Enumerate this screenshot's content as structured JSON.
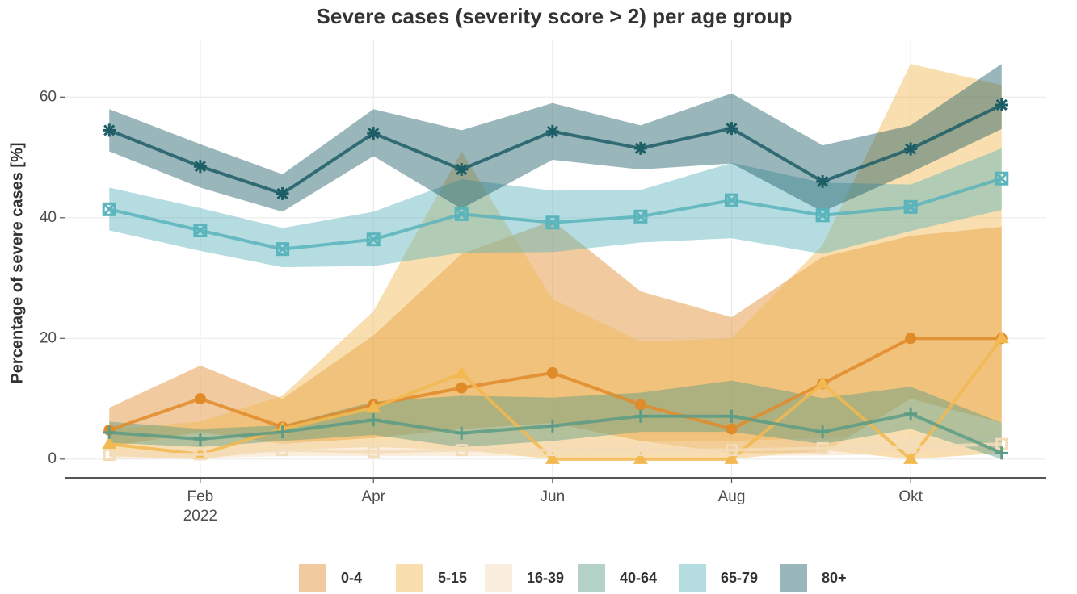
{
  "chart_data": {
    "type": "line",
    "title": "Severe cases (severity score > 2) per age group",
    "y_label": "Percentage of severe cases [%]",
    "x": [
      "2022-01",
      "2022-02",
      "2022-03",
      "2022-04",
      "2022-05",
      "2022-06",
      "2022-07",
      "2022-08",
      "2022-09",
      "2022-10",
      "2022-11"
    ],
    "xticks": [
      {
        "value": "2022-02",
        "label": "Feb\n2022"
      },
      {
        "value": "2022-04",
        "label": "Apr"
      },
      {
        "value": "2022-06",
        "label": "Jun"
      },
      {
        "value": "2022-08",
        "label": "Aug"
      },
      {
        "value": "2022-10",
        "label": "Okt"
      }
    ],
    "ylim": [
      -3.1,
      69.4
    ],
    "yticks": [
      0,
      20,
      40,
      60
    ],
    "grid": true,
    "legend": "bottom",
    "series": [
      {
        "name": "0-4",
        "color": "#e08b2a",
        "shape": "circle",
        "values": [
          4.8,
          10,
          5.3,
          9,
          11.8,
          14.3,
          9,
          5,
          12.5,
          20,
          20
        ],
        "upper": [
          8.5,
          15.5,
          10,
          20.5,
          34,
          39.5,
          27.8,
          23.5,
          33.5,
          37,
          38.5
        ],
        "lower": [
          2,
          4.5,
          2.5,
          3.5,
          5,
          6,
          3,
          1,
          1,
          10,
          6
        ]
      },
      {
        "name": "5-15",
        "color": "#f2b950",
        "shape": "triangle",
        "values": [
          2.5,
          0.8,
          5,
          8.5,
          14.2,
          0,
          0,
          0,
          12.5,
          0,
          20
        ],
        "upper": [
          5,
          6.2,
          10.5,
          24.5,
          51,
          26.5,
          19.5,
          20,
          35.5,
          65.5,
          62
        ],
        "lower": [
          0.5,
          0,
          1.5,
          2,
          1.5,
          0,
          0,
          0,
          1.5,
          0,
          1
        ]
      },
      {
        "name": "16-39",
        "color": "#f3dcb9",
        "shape": "square",
        "values": [
          0.7,
          0.8,
          1.5,
          1.2,
          1.5,
          1.5,
          1.5,
          1.5,
          1.8,
          2,
          2.5
        ],
        "upper": [
          2,
          2.5,
          3,
          3,
          3.5,
          3.5,
          3,
          3,
          3.5,
          4,
          4
        ],
        "lower": [
          0,
          0.2,
          0.5,
          0.5,
          0.5,
          0.5,
          0.6,
          0.5,
          0.6,
          0.8,
          1
        ]
      },
      {
        "name": "40-64",
        "color": "#5c9c85",
        "shape": "plus",
        "values": [
          4.4,
          3.3,
          4.5,
          6.5,
          4.3,
          5.5,
          7.1,
          7.1,
          4.5,
          7.5,
          1.0
        ],
        "upper": [
          6.2,
          5,
          5.6,
          9.5,
          10.5,
          10.2,
          11,
          13,
          10.1,
          12,
          6
        ],
        "lower": [
          2.7,
          2,
          3,
          4,
          2,
          3,
          4.5,
          4.5,
          2.5,
          5,
          0
        ]
      },
      {
        "name": "65-79",
        "color": "#5ab4bc",
        "shape": "boxcross",
        "values": [
          41.4,
          37.9,
          34.8,
          36.4,
          40.6,
          39.2,
          40.2,
          42.9,
          40.4,
          41.8,
          46.5
        ],
        "upper": [
          45,
          41.6,
          38.3,
          41,
          46.4,
          44.5,
          44.6,
          49.1,
          45.8,
          45.5,
          51.5
        ],
        "lower": [
          37.9,
          34.5,
          31.8,
          32,
          34.2,
          34.3,
          35.9,
          36.6,
          34,
          37.8,
          41.3
        ]
      },
      {
        "name": "80+",
        "color": "#1d5e66",
        "shape": "asterisk",
        "values": [
          54.5,
          48.5,
          44,
          54,
          48,
          54.3,
          51.5,
          54.8,
          46,
          51.4,
          58.7
        ],
        "upper": [
          58,
          52.2,
          47.2,
          58,
          54.5,
          59,
          55.3,
          60.6,
          52,
          55.3,
          65.5
        ],
        "lower": [
          51,
          45,
          41,
          50.2,
          41.5,
          49.6,
          48,
          49,
          41,
          47.5,
          54.7
        ]
      }
    ]
  }
}
